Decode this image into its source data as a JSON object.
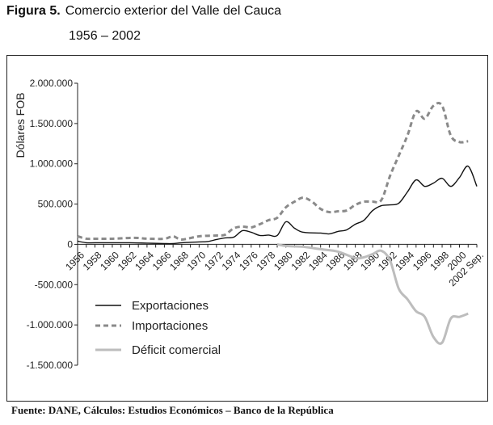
{
  "header": {
    "figure_label": "Figura 5.",
    "title": "Comercio exterior del Valle del Cauca",
    "subtitle": "1956 – 2002"
  },
  "footer": {
    "source": "Fuente: DANE, Cálculos: Estudios Económicos – Banco de la República"
  },
  "chart_data": {
    "type": "line",
    "title": "Comercio exterior del Valle del Cauca 1956 – 2002",
    "xlabel": "",
    "ylabel": "Dólares FOB",
    "ylim": [
      -1500000,
      2000000
    ],
    "xlim": [
      1956,
      2002
    ],
    "yticks": [
      2000000,
      1500000,
      1000000,
      500000,
      0,
      -500000,
      -1000000,
      -1500000
    ],
    "ytick_labels": [
      "2.000.000",
      "1.500.000",
      "1.000.000",
      "500.000",
      "0",
      "-500.000",
      "-1.000.000",
      "-1.500.000"
    ],
    "xtick_labels": [
      "1956",
      "1958",
      "1960",
      "1962",
      "1964",
      "1966",
      "1968",
      "1970",
      "1972",
      "1974",
      "1976",
      "1978",
      "1980",
      "1982",
      "1984",
      "1986",
      "1988",
      "1990",
      "1992",
      "1994",
      "1996",
      "1998",
      "2000",
      "2002 Sep."
    ],
    "legend_position": "bottom-left",
    "grid": false,
    "series": [
      {
        "name": "Exportaciones",
        "color": "#111111",
        "style": "solid",
        "x": [
          1956,
          1957,
          1958,
          1960,
          1962,
          1964,
          1966,
          1967,
          1968,
          1970,
          1971,
          1972,
          1973,
          1974,
          1975,
          1976,
          1977,
          1978,
          1979,
          1980,
          1981,
          1982,
          1984,
          1985,
          1986,
          1987,
          1988,
          1989,
          1990,
          1991,
          1992,
          1993,
          1994,
          1995,
          1996,
          1997,
          1998,
          1999,
          2000,
          2001,
          2002
        ],
        "y": [
          40000,
          20000,
          20000,
          20000,
          20000,
          15000,
          10000,
          10000,
          20000,
          30000,
          35000,
          60000,
          80000,
          90000,
          170000,
          150000,
          110000,
          115000,
          110000,
          280000,
          200000,
          150000,
          140000,
          130000,
          160000,
          180000,
          250000,
          300000,
          420000,
          480000,
          490000,
          510000,
          650000,
          800000,
          720000,
          760000,
          820000,
          720000,
          830000,
          970000,
          720000
        ]
      },
      {
        "name": "Importaciones",
        "color": "#8a8a8a",
        "style": "dashed",
        "x": [
          1956,
          1957,
          1958,
          1960,
          1962,
          1963,
          1964,
          1966,
          1967,
          1968,
          1970,
          1972,
          1973,
          1974,
          1975,
          1976,
          1977,
          1978,
          1979,
          1980,
          1981,
          1982,
          1983,
          1984,
          1985,
          1986,
          1987,
          1988,
          1989,
          1990,
          1991,
          1992,
          1993,
          1994,
          1995,
          1996,
          1997,
          1998,
          1999,
          2000,
          2001
        ],
        "y": [
          100000,
          70000,
          70000,
          70000,
          80000,
          80000,
          70000,
          70000,
          100000,
          60000,
          100000,
          110000,
          120000,
          200000,
          220000,
          210000,
          250000,
          300000,
          330000,
          460000,
          530000,
          580000,
          530000,
          440000,
          400000,
          410000,
          420000,
          490000,
          530000,
          530000,
          550000,
          850000,
          1100000,
          1350000,
          1650000,
          1560000,
          1720000,
          1720000,
          1350000,
          1270000,
          1280000
        ]
      },
      {
        "name": "Déficit comercial",
        "color": "#bdbdbd",
        "style": "solid",
        "x": [
          1979,
          1980,
          1982,
          1984,
          1986,
          1988,
          1989,
          1990,
          1991,
          1992,
          1993,
          1994,
          1995,
          1996,
          1997,
          1998,
          1999,
          2000,
          2001
        ],
        "y": [
          0,
          -20000,
          -30000,
          -60000,
          -90000,
          -170000,
          -160000,
          -120000,
          -80000,
          -200000,
          -550000,
          -680000,
          -830000,
          -900000,
          -1150000,
          -1220000,
          -920000,
          -900000,
          -860000
        ]
      }
    ]
  }
}
